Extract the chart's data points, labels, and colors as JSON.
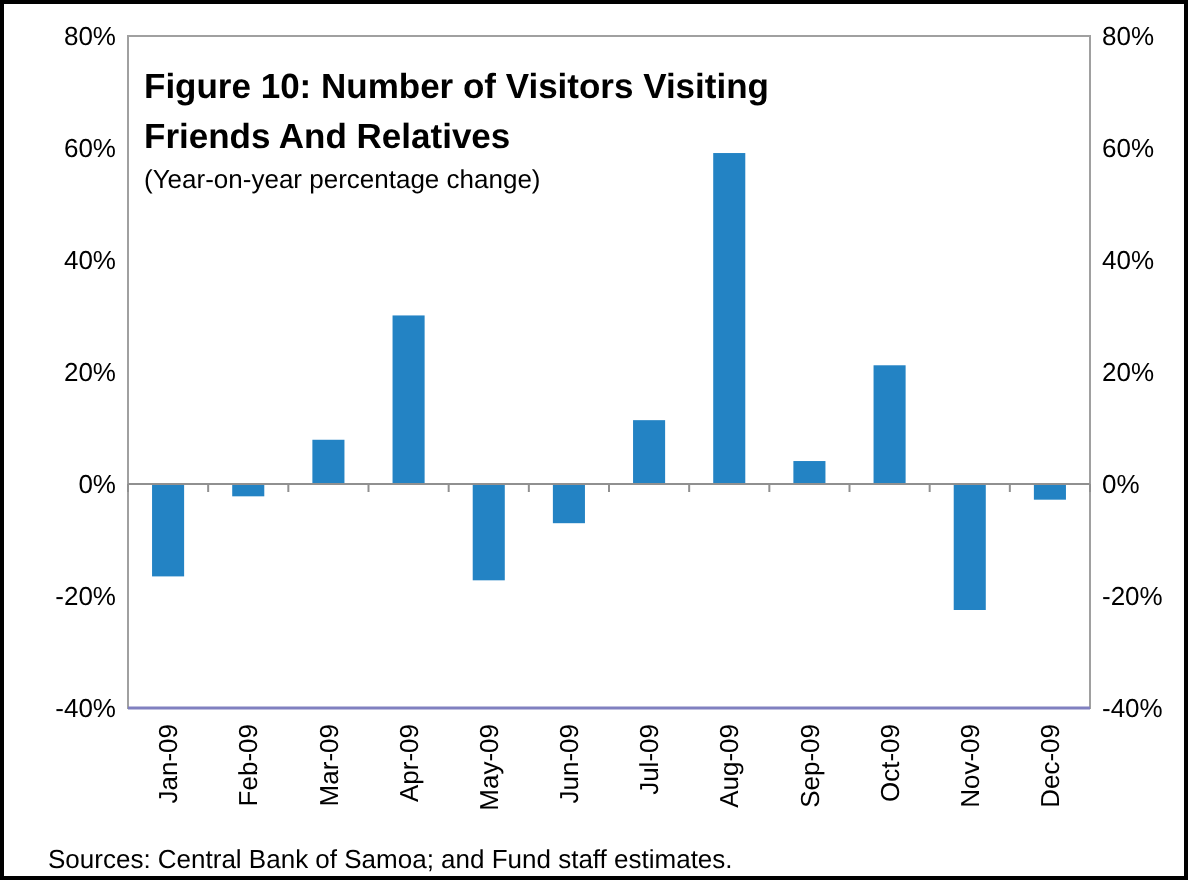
{
  "chart_data": {
    "type": "bar",
    "title": "Figure 10: Number of Visitors Visiting Friends And Relatives",
    "subtitle": "(Year-on-year percentage change)",
    "categories": [
      "Jan-09",
      "Feb-09",
      "Mar-09",
      "Apr-09",
      "May-09",
      "Jun-09",
      "Jul-09",
      "Aug-09",
      "Sep-09",
      "Oct-09",
      "Nov-09",
      "Dec-09"
    ],
    "values": [
      -16.5,
      -2.2,
      7.9,
      30.1,
      -17.2,
      -7,
      11.4,
      59.1,
      4.1,
      21.2,
      -22.5,
      -2.8
    ],
    "color": "#2383c4",
    "ylim": [
      -40,
      80
    ],
    "yticks": [
      {
        "value": -40,
        "label": "-40%"
      },
      {
        "value": -20,
        "label": "-20%"
      },
      {
        "value": 0,
        "label": "0%"
      },
      {
        "value": 20,
        "label": "20%"
      },
      {
        "value": 40,
        "label": "40%"
      },
      {
        "value": 60,
        "label": "60%"
      },
      {
        "value": 80,
        "label": "80%"
      }
    ],
    "y2lim": [
      -40,
      80
    ],
    "y2ticks": [
      {
        "value": -40,
        "label": "-40%"
      },
      {
        "value": -20,
        "label": "-20%"
      },
      {
        "value": 0,
        "label": "0%"
      },
      {
        "value": 20,
        "label": "20%"
      },
      {
        "value": 40,
        "label": "40%"
      },
      {
        "value": 60,
        "label": "60%"
      },
      {
        "value": 80,
        "label": "80%"
      }
    ],
    "annotations": [
      "Sources: Central Bank of Samoa; and Fund staff estimates."
    ]
  }
}
